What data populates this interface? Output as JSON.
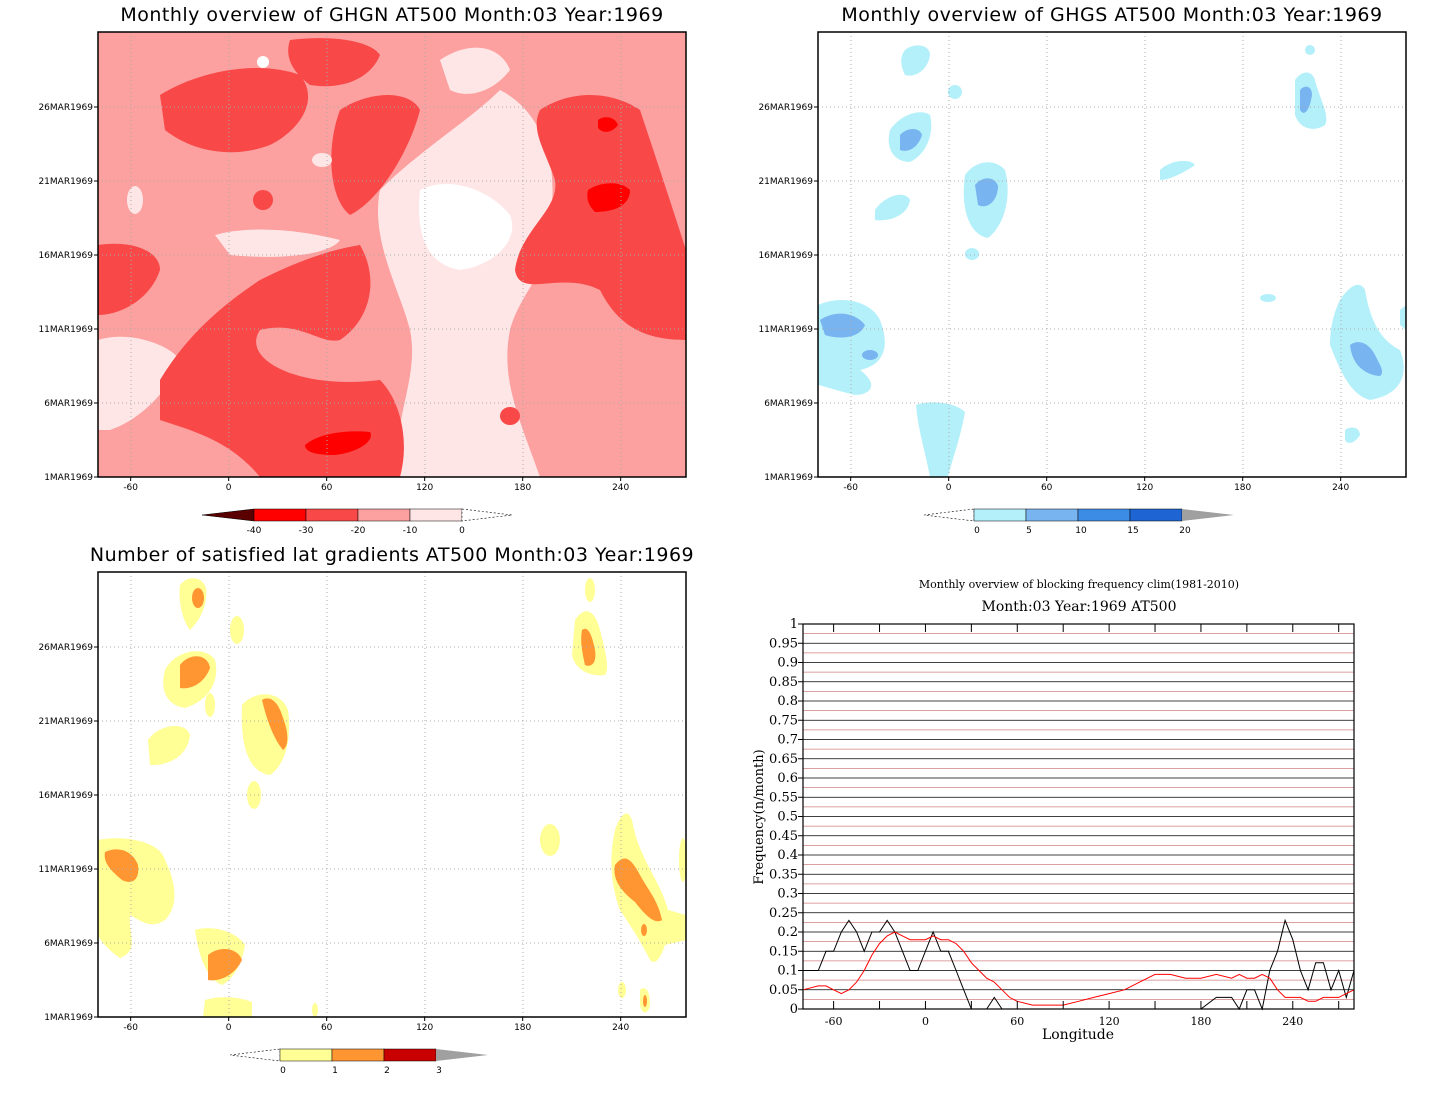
{
  "panels": {
    "ghgn": {
      "title": "Monthly overview of GHGN AT500 Month:03 Year:1969",
      "yticks": [
        "1MAR1969",
        "6MAR1969",
        "11MAR1969",
        "16MAR1969",
        "21MAR1969",
        "26MAR1969"
      ],
      "xticks": [
        "-60",
        "0",
        "60",
        "120",
        "180",
        "240"
      ],
      "colorbar": {
        "labels": [
          "-40",
          "-30",
          "-20",
          "-10",
          "0"
        ],
        "colors": [
          "#5a0000",
          "#ff0000",
          "#f84848",
          "#fca0a0",
          "#ffe6e6"
        ]
      }
    },
    "ghgs": {
      "title": "Monthly overview of GHGS AT500 Month:03 Year:1969",
      "yticks": [
        "1MAR1969",
        "6MAR1969",
        "11MAR1969",
        "16MAR1969",
        "21MAR1969",
        "26MAR1969"
      ],
      "xticks": [
        "-60",
        "0",
        "60",
        "120",
        "180",
        "240"
      ],
      "colorbar": {
        "labels": [
          "0",
          "5",
          "10",
          "15",
          "20"
        ],
        "colors": [
          "#b4f0fa",
          "#78b4f0",
          "#3c8ce6",
          "#1e64d2",
          "#a0a0a0"
        ]
      }
    },
    "gradients": {
      "title": "Number of satisfied lat gradients AT500 Month:03 Year:1969",
      "yticks": [
        "1MAR1969",
        "6MAR1969",
        "11MAR1969",
        "16MAR1969",
        "21MAR1969",
        "26MAR1969"
      ],
      "xticks": [
        "-60",
        "0",
        "60",
        "120",
        "180",
        "240"
      ],
      "colorbar": {
        "labels": [
          "0",
          "1",
          "2",
          "3"
        ],
        "colors": [
          "#ffff96",
          "#ff9632",
          "#c80000",
          "#a0a0a0"
        ]
      }
    }
  },
  "chart_data": [
    {
      "type": "heatmap",
      "title": "Monthly overview of GHGN AT500 Month:03 Year:1969",
      "xlim": [
        -80,
        280
      ],
      "ylim": [
        "1MAR1969",
        "31MAR1969"
      ],
      "levels": [
        -40,
        -30,
        -20,
        -10,
        0
      ],
      "note_colors": "darker red = more negative"
    },
    {
      "type": "heatmap",
      "title": "Monthly overview of GHGS AT500 Month:03 Year:1969",
      "xlim": [
        -80,
        280
      ],
      "ylim": [
        "1MAR1969",
        "31MAR1969"
      ],
      "levels": [
        0,
        5,
        10,
        15,
        20
      ]
    },
    {
      "type": "heatmap",
      "title": "Number of satisfied lat gradients AT500 Month:03 Year:1969",
      "xlim": [
        -80,
        280
      ],
      "ylim": [
        "1MAR1969",
        "31MAR1969"
      ],
      "levels": [
        0,
        1,
        2,
        3
      ]
    },
    {
      "type": "line",
      "title": "Monthly overview of blocking frequency clim(1981-2010)",
      "subtitle": "Month:03 Year:1969  AT500",
      "xlabel": "Longitude",
      "ylabel": "Frequency(n/month)",
      "xlim": [
        -80,
        280
      ],
      "ylim": [
        0,
        1
      ],
      "xticks": [
        "-60",
        "0",
        "60",
        "120",
        "180",
        "240"
      ],
      "yticks": [
        "0",
        "0.05",
        "0.1",
        "0.15",
        "0.2",
        "0.25",
        "0.3",
        "0.35",
        "0.4",
        "0.45",
        "0.5",
        "0.55",
        "0.6",
        "0.65",
        "0.7",
        "0.75",
        "0.8",
        "0.85",
        "0.9",
        "0.95",
        "1"
      ],
      "x": [
        -80,
        -70,
        -65,
        -60,
        -55,
        -50,
        -45,
        -40,
        -35,
        -30,
        -25,
        -20,
        -15,
        -10,
        -5,
        0,
        5,
        10,
        15,
        20,
        25,
        30,
        35,
        40,
        45,
        50,
        55,
        60,
        70,
        80,
        90,
        100,
        110,
        120,
        130,
        140,
        150,
        160,
        170,
        180,
        190,
        200,
        205,
        210,
        215,
        220,
        225,
        230,
        235,
        240,
        245,
        250,
        255,
        260,
        265,
        270,
        275,
        280
      ],
      "series": [
        {
          "color": "#000000",
          "values": [
            0.1,
            0.1,
            0.15,
            0.15,
            0.2,
            0.23,
            0.2,
            0.15,
            0.2,
            0.2,
            0.23,
            0.2,
            0.15,
            0.1,
            0.1,
            0.15,
            0.2,
            0.15,
            0.15,
            0.1,
            0.05,
            0.0,
            0.0,
            0.0,
            0.03,
            0.0,
            0.0,
            0.0,
            0.0,
            0.0,
            0.0,
            0.0,
            0.0,
            0.0,
            0.0,
            0.0,
            0.0,
            0.0,
            0.0,
            0.0,
            0.03,
            0.03,
            0.0,
            0.05,
            0.05,
            0.0,
            0.1,
            0.15,
            0.23,
            0.18,
            0.1,
            0.05,
            0.12,
            0.12,
            0.05,
            0.1,
            0.03,
            0.1
          ]
        },
        {
          "color": "#ff0000",
          "values": [
            0.05,
            0.06,
            0.06,
            0.05,
            0.04,
            0.05,
            0.07,
            0.1,
            0.14,
            0.17,
            0.19,
            0.2,
            0.19,
            0.18,
            0.18,
            0.18,
            0.19,
            0.18,
            0.18,
            0.17,
            0.15,
            0.12,
            0.1,
            0.08,
            0.07,
            0.05,
            0.03,
            0.02,
            0.01,
            0.01,
            0.01,
            0.02,
            0.03,
            0.04,
            0.05,
            0.07,
            0.09,
            0.09,
            0.08,
            0.08,
            0.09,
            0.08,
            0.09,
            0.08,
            0.08,
            0.09,
            0.08,
            0.05,
            0.03,
            0.03,
            0.03,
            0.02,
            0.02,
            0.03,
            0.03,
            0.03,
            0.04,
            0.05
          ]
        }
      ]
    }
  ]
}
